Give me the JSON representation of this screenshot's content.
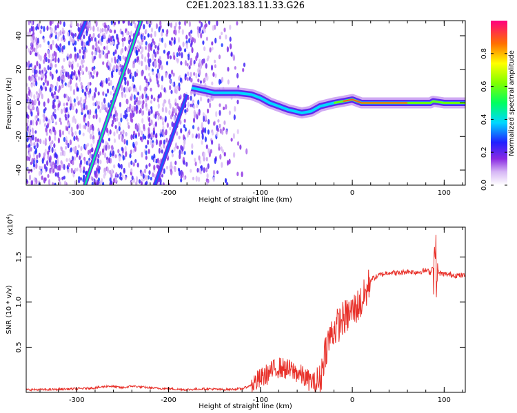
{
  "title": "C2E1.2023.183.11.33.G26",
  "chart_data": [
    {
      "type": "heatmap",
      "xlabel": "Height of straight line (km)",
      "ylabel": "Frequency (Hz)",
      "xlim": [
        -355,
        123
      ],
      "ylim": [
        -49,
        49
      ],
      "x_ticks": [
        -300,
        -200,
        -100,
        0,
        100
      ],
      "x_tick_labels": [
        "-300",
        "-200",
        "-100",
        "0",
        "100"
      ],
      "y_ticks": [
        -40,
        -20,
        0,
        20,
        40
      ],
      "y_tick_labels": [
        "-40",
        "-20",
        "0",
        "20",
        "40"
      ],
      "colorbar": {
        "label": "Normalized spectral amplitude",
        "range": [
          0,
          1
        ],
        "ticks": [
          0.0,
          0.2,
          0.4,
          0.6,
          0.8
        ],
        "tick_labels": [
          "0.0",
          "0.2",
          "0.4",
          "0.6",
          "0.8"
        ]
      },
      "features": {
        "noise_region_x": [
          -355,
          -115
        ],
        "main_trace": [
          [
            -175,
            9
          ],
          [
            -150,
            6
          ],
          [
            -125,
            6
          ],
          [
            -110,
            5
          ],
          [
            -100,
            3
          ],
          [
            -90,
            0
          ],
          [
            -80,
            -2
          ],
          [
            -70,
            -4
          ],
          [
            -55,
            -6
          ],
          [
            -45,
            -5
          ],
          [
            -35,
            -2
          ],
          [
            -20,
            0
          ],
          [
            -10,
            1
          ],
          [
            0,
            2
          ],
          [
            10,
            0
          ],
          [
            30,
            0
          ],
          [
            60,
            0
          ],
          [
            85,
            0
          ],
          [
            88,
            1
          ],
          [
            100,
            0
          ],
          [
            123,
            0
          ]
        ],
        "diagonal_lines": [
          {
            "x": [
              -291,
              -230
            ],
            "y": [
              -49,
              49
            ]
          },
          {
            "x": [
              -298,
              -290
            ],
            "y": [
              38,
              49
            ]
          },
          {
            "x": [
              -215,
              -180
            ],
            "y": [
              -49,
              5
            ]
          }
        ]
      }
    },
    {
      "type": "line",
      "xlabel": "Height of straight line (km)",
      "ylabel": "SNR (10 * v/v)",
      "y_multiplier": "(x10⁴)",
      "y_multiplier_base": "(x10",
      "y_multiplier_exp": "4",
      "xlim": [
        -355,
        123
      ],
      "ylim": [
        0,
        1.83
      ],
      "x_ticks": [
        -300,
        -200,
        -100,
        0,
        100
      ],
      "x_tick_labels": [
        "-300",
        "-200",
        "-100",
        "0",
        "100"
      ],
      "y_ticks": [
        0.5,
        1.0,
        1.5
      ],
      "y_tick_labels": [
        "0.5",
        "1.0",
        "1.5"
      ],
      "series": [
        {
          "color": "#e8312a",
          "x": [
            -355,
            -330,
            -300,
            -280,
            -265,
            -250,
            -240,
            -220,
            -200,
            -180,
            -160,
            -140,
            -120,
            -110,
            -100,
            -90,
            -80,
            -70,
            -60,
            -50,
            -40,
            -35,
            -30,
            -25,
            -20,
            -15,
            -10,
            -5,
            0,
            5,
            10,
            15,
            20,
            30,
            40,
            50,
            60,
            70,
            80,
            85,
            88,
            90,
            92,
            95,
            100,
            110,
            123
          ],
          "y": [
            0.03,
            0.03,
            0.04,
            0.05,
            0.07,
            0.05,
            0.07,
            0.05,
            0.04,
            0.03,
            0.04,
            0.03,
            0.04,
            0.08,
            0.15,
            0.22,
            0.28,
            0.25,
            0.22,
            0.15,
            0.1,
            0.12,
            0.45,
            0.6,
            0.7,
            0.75,
            0.82,
            0.85,
            0.9,
            0.95,
            1.0,
            1.1,
            1.25,
            1.3,
            1.33,
            1.32,
            1.34,
            1.33,
            1.35,
            1.33,
            1.4,
            1.5,
            1.35,
            1.32,
            1.31,
            1.3,
            1.29
          ]
        }
      ]
    }
  ]
}
